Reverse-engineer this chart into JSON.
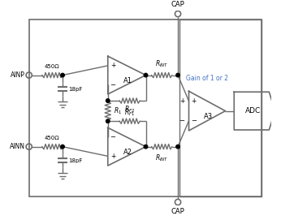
{
  "fig_width": 3.46,
  "fig_height": 2.66,
  "dpi": 100,
  "bg_color": "#ffffff",
  "line_color": "#6d6d6d",
  "text_color": "#000000",
  "gain_color": "#4472c4",
  "res450_label": "450Ω",
  "cap18_label": "18pF",
  "gain_label": "Gain of 1 or 2",
  "adc_label": "ADC",
  "a1_label": "A1",
  "a2_label": "A2",
  "a3_label": "A3",
  "cap_label": "CAP"
}
